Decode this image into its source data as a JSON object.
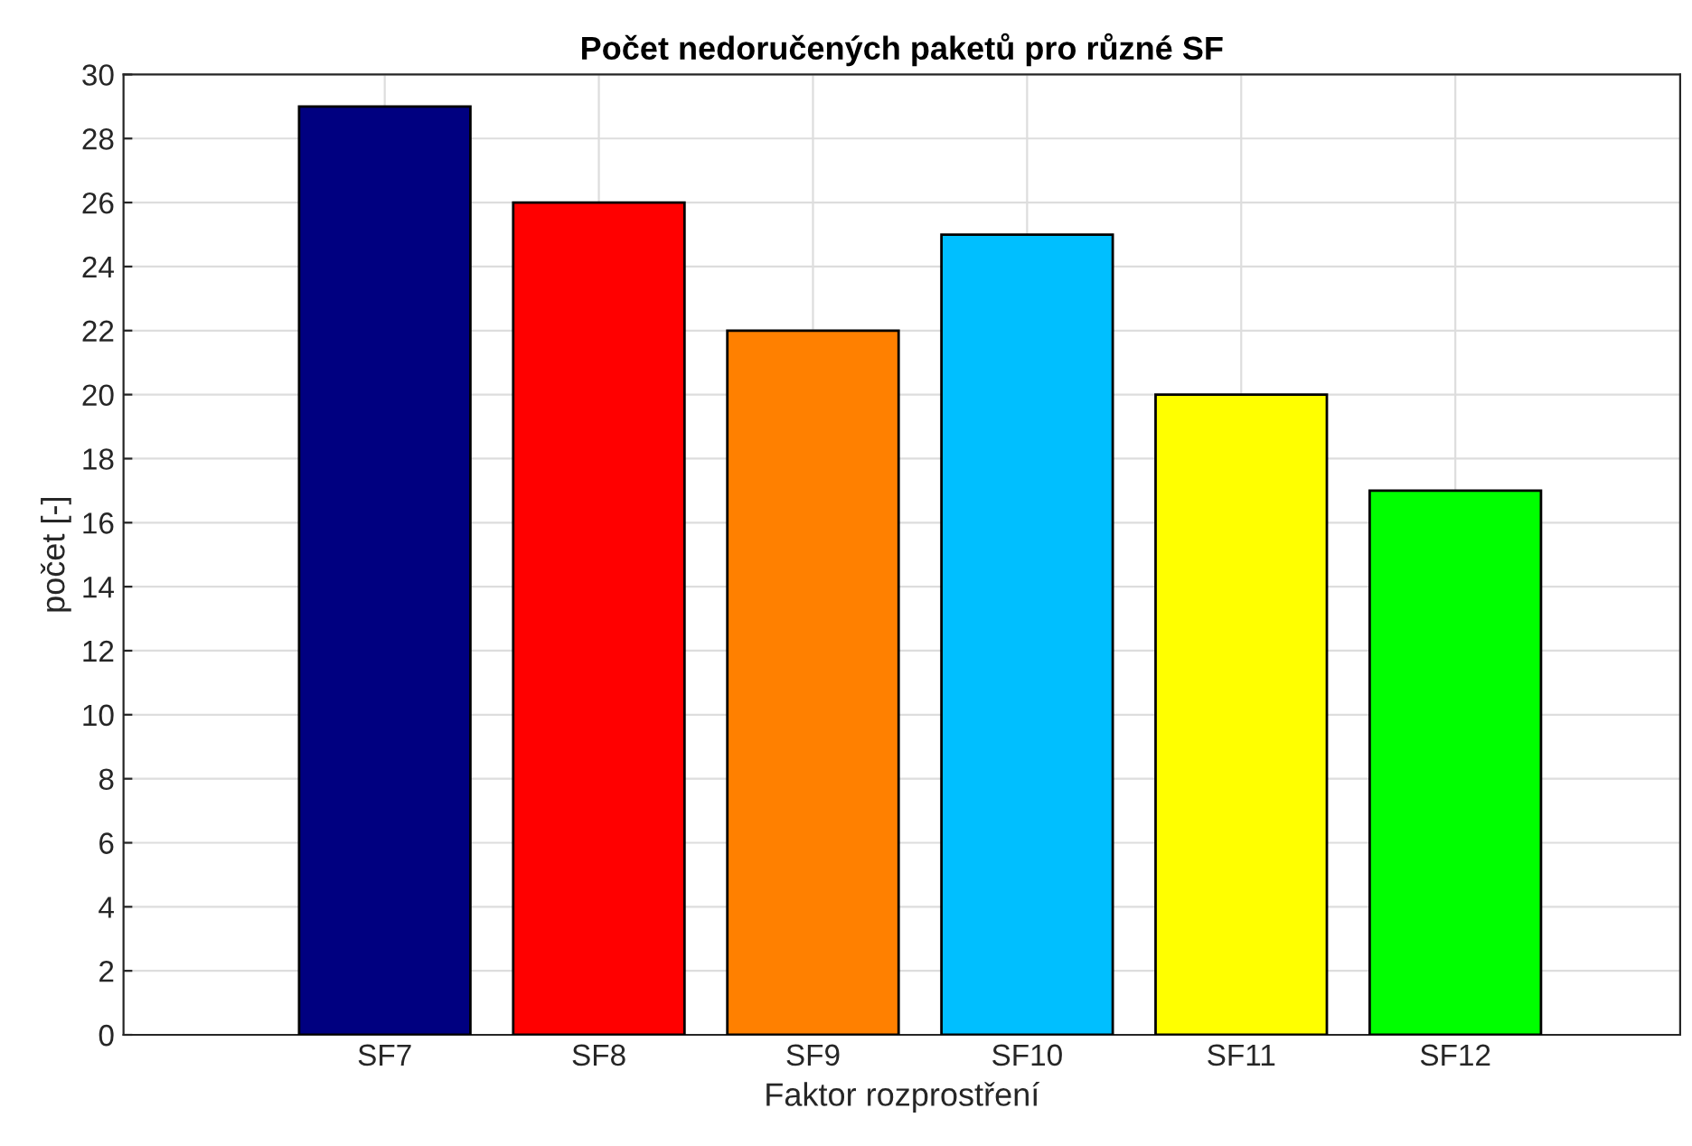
{
  "chart_data": {
    "type": "bar",
    "title": "Počet nedoručených paketů pro různé SF",
    "xlabel": "Faktor rozprostření",
    "ylabel": "počet [-]",
    "categories": [
      "SF7",
      "SF8",
      "SF9",
      "SF10",
      "SF11",
      "SF12"
    ],
    "values": [
      29,
      26,
      22,
      25,
      20,
      17
    ],
    "colors": [
      "#000080",
      "#ff0000",
      "#ff8000",
      "#00bfff",
      "#ffff00",
      "#00ff00"
    ],
    "ylim": [
      0,
      30
    ],
    "yticks": [
      0,
      2,
      4,
      6,
      8,
      10,
      12,
      14,
      16,
      18,
      20,
      22,
      24,
      26,
      28,
      30
    ],
    "grid": true
  }
}
